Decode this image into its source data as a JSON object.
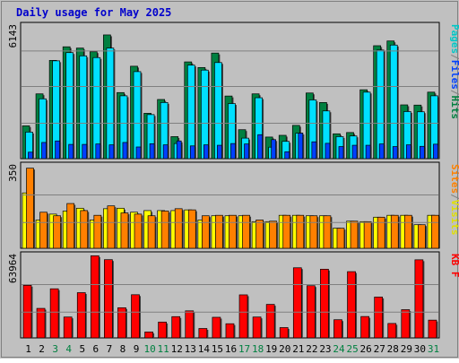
{
  "chart_data": [
    {
      "type": "bar",
      "title": "Daily usage for May 2025",
      "y_max_label": "6143",
      "ylim": [
        0,
        6143
      ],
      "legend_right": [
        {
          "text": "Pages",
          "color": "#00c8c8"
        },
        {
          "text": "/",
          "color": "#808080"
        },
        {
          "text": "Files",
          "color": "#0040ff"
        },
        {
          "text": "/",
          "color": "#808080"
        },
        {
          "text": "Hits",
          "color": "#008040"
        }
      ],
      "colors": {
        "hits": "#008040",
        "files": "#00e0ff",
        "pages": "#0040ff"
      },
      "categories": [
        "1",
        "2",
        "3",
        "4",
        "5",
        "6",
        "7",
        "8",
        "9",
        "10",
        "11",
        "12",
        "13",
        "14",
        "15",
        "16",
        "17",
        "18",
        "19",
        "20",
        "21",
        "22",
        "23",
        "24",
        "25",
        "26",
        "27",
        "28",
        "29",
        "30",
        "31"
      ],
      "weekend_days": [
        "3",
        "4",
        "10",
        "11",
        "17",
        "18",
        "24",
        "25",
        "31"
      ],
      "series": [
        {
          "key": "hits",
          "values": [
            1520,
            3000,
            4550,
            5180,
            5120,
            4950,
            5730,
            3060,
            4280,
            2100,
            2740,
            1020,
            4480,
            4220,
            4890,
            2900,
            1340,
            3000,
            1000,
            1080,
            1540,
            3040,
            2600,
            1150,
            1210,
            3190,
            5230,
            5450,
            2490,
            2480,
            3080
          ]
        },
        {
          "key": "files",
          "values": [
            1230,
            2770,
            4530,
            4910,
            4760,
            4680,
            5120,
            2910,
            4030,
            2040,
            2600,
            700,
            4330,
            4100,
            4450,
            2550,
            950,
            2820,
            530,
            800,
            1180,
            2720,
            2210,
            1020,
            1050,
            3080,
            5030,
            5260,
            2180,
            2170,
            2910
          ]
        },
        {
          "key": "pages",
          "values": [
            300,
            750,
            820,
            660,
            660,
            680,
            640,
            750,
            540,
            690,
            640,
            820,
            590,
            640,
            620,
            700,
            680,
            1110,
            880,
            320,
            1180,
            780,
            710,
            560,
            620,
            620,
            680,
            560,
            640,
            570,
            670
          ]
        }
      ]
    },
    {
      "type": "bar",
      "y_max_label": "350",
      "ylim": [
        0,
        350
      ],
      "legend_right": [
        {
          "text": "Sites",
          "color": "#ff8000"
        },
        {
          "text": "/",
          "color": "#808080"
        },
        {
          "text": "Visits",
          "color": "#e0e000"
        }
      ],
      "colors": {
        "visits": "#ffff00",
        "sites": "#ff8000"
      },
      "series": [
        {
          "key": "visits",
          "values": [
            235,
            120,
            145,
            158,
            170,
            120,
            168,
            170,
            153,
            160,
            160,
            160,
            163,
            120,
            138,
            138,
            138,
            113,
            113,
            140,
            140,
            138,
            138,
            85,
            115,
            113,
            132,
            140,
            140,
            100,
            140
          ]
        },
        {
          "key": "sites",
          "values": [
            340,
            153,
            138,
            190,
            160,
            140,
            180,
            150,
            145,
            138,
            158,
            168,
            163,
            138,
            140,
            140,
            140,
            120,
            115,
            140,
            140,
            138,
            138,
            85,
            115,
            113,
            132,
            140,
            140,
            100,
            140
          ]
        }
      ]
    },
    {
      "type": "bar",
      "y_max_label": "63964",
      "ylim": [
        0,
        63964
      ],
      "legend_right": [
        {
          "text": "KB F",
          "color": "#ff0000"
        }
      ],
      "colors": {
        "kbf": "#ff0000"
      },
      "series": [
        {
          "key": "kbf",
          "values": [
            40800,
            22900,
            38100,
            16200,
            35100,
            63700,
            60700,
            23400,
            33500,
            4600,
            12300,
            16500,
            21000,
            7300,
            16000,
            11000,
            33400,
            16200,
            26000,
            8000,
            54400,
            40500,
            53300,
            14100,
            51400,
            16600,
            31700,
            11200,
            21900,
            60600,
            13800
          ]
        }
      ]
    }
  ]
}
